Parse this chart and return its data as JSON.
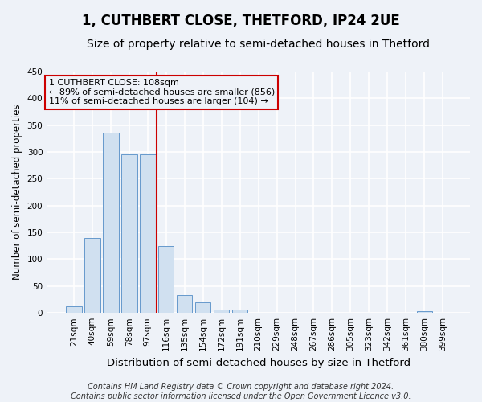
{
  "title": "1, CUTHBERT CLOSE, THETFORD, IP24 2UE",
  "subtitle": "Size of property relative to semi-detached houses in Thetford",
  "xlabel": "Distribution of semi-detached houses by size in Thetford",
  "ylabel": "Number of semi-detached properties",
  "categories": [
    "21sqm",
    "40sqm",
    "59sqm",
    "78sqm",
    "97sqm",
    "116sqm",
    "135sqm",
    "154sqm",
    "172sqm",
    "191sqm",
    "210sqm",
    "229sqm",
    "248sqm",
    "267sqm",
    "286sqm",
    "305sqm",
    "323sqm",
    "342sqm",
    "361sqm",
    "380sqm",
    "399sqm"
  ],
  "values": [
    12,
    140,
    336,
    295,
    295,
    125,
    33,
    20,
    6,
    7,
    0,
    0,
    0,
    0,
    0,
    0,
    0,
    0,
    0,
    4,
    0
  ],
  "bar_color": "#d0e0f0",
  "bar_edge_color": "#6699cc",
  "vline_x_index": 5,
  "vline_color": "#cc0000",
  "annotation_line1": "1 CUTHBERT CLOSE: 108sqm",
  "annotation_line2": "← 89% of semi-detached houses are smaller (856)",
  "annotation_line3": "11% of semi-detached houses are larger (104) →",
  "annotation_box_color": "#cc0000",
  "ylim": [
    0,
    450
  ],
  "yticks": [
    0,
    50,
    100,
    150,
    200,
    250,
    300,
    350,
    400,
    450
  ],
  "footer": "Contains HM Land Registry data © Crown copyright and database right 2024.\nContains public sector information licensed under the Open Government Licence v3.0.",
  "background_color": "#eef2f8",
  "grid_color": "#ffffff",
  "title_fontsize": 12,
  "subtitle_fontsize": 10,
  "xlabel_fontsize": 9.5,
  "ylabel_fontsize": 8.5,
  "tick_fontsize": 7.5,
  "annotation_fontsize": 8,
  "footer_fontsize": 7
}
